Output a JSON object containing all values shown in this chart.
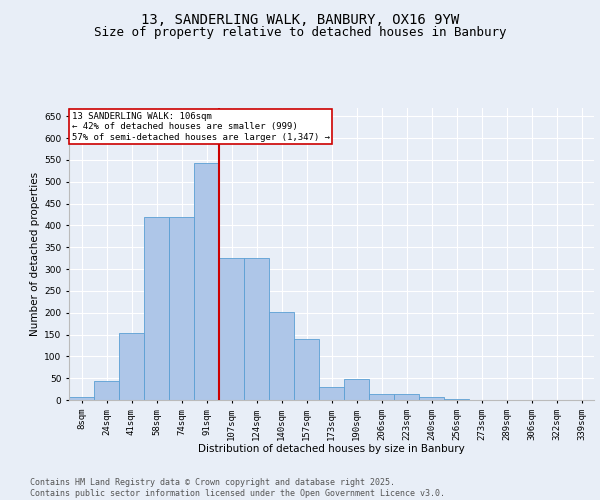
{
  "title_line1": "13, SANDERLING WALK, BANBURY, OX16 9YW",
  "title_line2": "Size of property relative to detached houses in Banbury",
  "xlabel": "Distribution of detached houses by size in Banbury",
  "ylabel": "Number of detached properties",
  "categories": [
    "8sqm",
    "24sqm",
    "41sqm",
    "58sqm",
    "74sqm",
    "91sqm",
    "107sqm",
    "124sqm",
    "140sqm",
    "157sqm",
    "173sqm",
    "190sqm",
    "206sqm",
    "223sqm",
    "240sqm",
    "256sqm",
    "273sqm",
    "289sqm",
    "306sqm",
    "322sqm",
    "339sqm"
  ],
  "values": [
    8,
    43,
    153,
    420,
    420,
    543,
    325,
    325,
    202,
    140,
    30,
    48,
    13,
    13,
    7,
    3,
    1,
    1,
    1,
    1,
    1
  ],
  "bar_color": "#aec6e8",
  "bar_edge_color": "#5a9fd4",
  "vline_index": 5,
  "vline_color": "#cc0000",
  "annotation_text": "13 SANDERLING WALK: 106sqm\n← 42% of detached houses are smaller (999)\n57% of semi-detached houses are larger (1,347) →",
  "annotation_box_color": "#ffffff",
  "annotation_box_edge_color": "#cc0000",
  "ylim": [
    0,
    670
  ],
  "yticks": [
    0,
    50,
    100,
    150,
    200,
    250,
    300,
    350,
    400,
    450,
    500,
    550,
    600,
    650
  ],
  "bg_color": "#e8eef7",
  "plot_bg_color": "#e8eef7",
  "footer_text": "Contains HM Land Registry data © Crown copyright and database right 2025.\nContains public sector information licensed under the Open Government Licence v3.0.",
  "title_fontsize": 10,
  "subtitle_fontsize": 9,
  "label_fontsize": 7.5,
  "tick_fontsize": 6.5,
  "footer_fontsize": 6
}
